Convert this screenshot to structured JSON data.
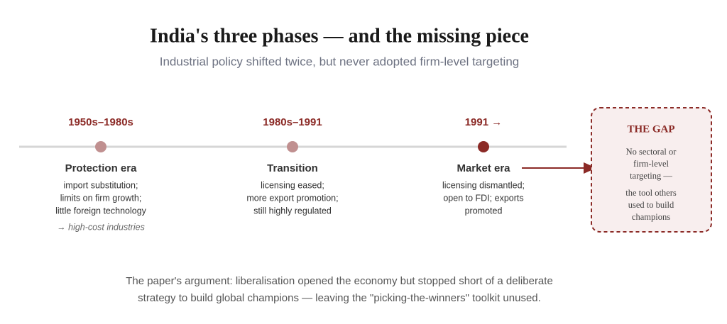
{
  "header": {
    "title": "India's three phases — and the missing piece",
    "subtitle": "Industrial policy shifted twice, but never adopted firm-level targeting"
  },
  "phases": [
    {
      "date": "1950s–1980s",
      "name": "Protection era",
      "lines": [
        "import substitution;",
        "limits on firm growth;",
        "little foreign technology"
      ],
      "note": "→ high-cost industries"
    },
    {
      "date": "1980s–1991",
      "name": "Transition",
      "lines": [
        "licensing eased;",
        "more export promotion;",
        "still highly regulated"
      ]
    },
    {
      "date": "1991 →",
      "name": "Market era",
      "lines": [
        "licensing dismantled;",
        "open to FDI; exports",
        "promoted"
      ]
    }
  ],
  "gap": {
    "title": "THE GAP",
    "paragraphs": [
      [
        "No sectoral or",
        "firm-level",
        "targeting —"
      ],
      [
        "the tool others",
        "used to build",
        "champions"
      ]
    ]
  },
  "footer": [
    "The paper's argument: liberalisation opened the economy but stopped short of a deliberate",
    "strategy to build global champions — leaving the \"picking-the-winners\" toolkit unused."
  ]
}
